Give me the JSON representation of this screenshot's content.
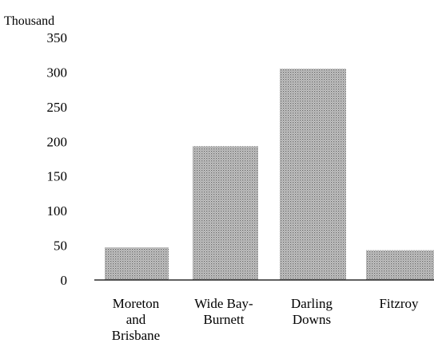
{
  "chart_data": {
    "type": "bar",
    "unit_label": "Thousand",
    "categories": [
      [
        "Moreton",
        "and",
        "Brisbane"
      ],
      [
        "Wide Bay-",
        "Burnett"
      ],
      [
        "Darling",
        "Downs"
      ],
      [
        "Fitzroy"
      ]
    ],
    "values": [
      47,
      193,
      305,
      43
    ],
    "y_ticks": [
      "0",
      "50",
      "100",
      "150",
      "200",
      "250",
      "300",
      "350"
    ],
    "ylim": [
      0,
      350
    ],
    "grid": false,
    "bar_color": "#b3b3b3",
    "bar_texture": "dotted-screen",
    "title": "",
    "xlabel": "",
    "ylabel": ""
  }
}
